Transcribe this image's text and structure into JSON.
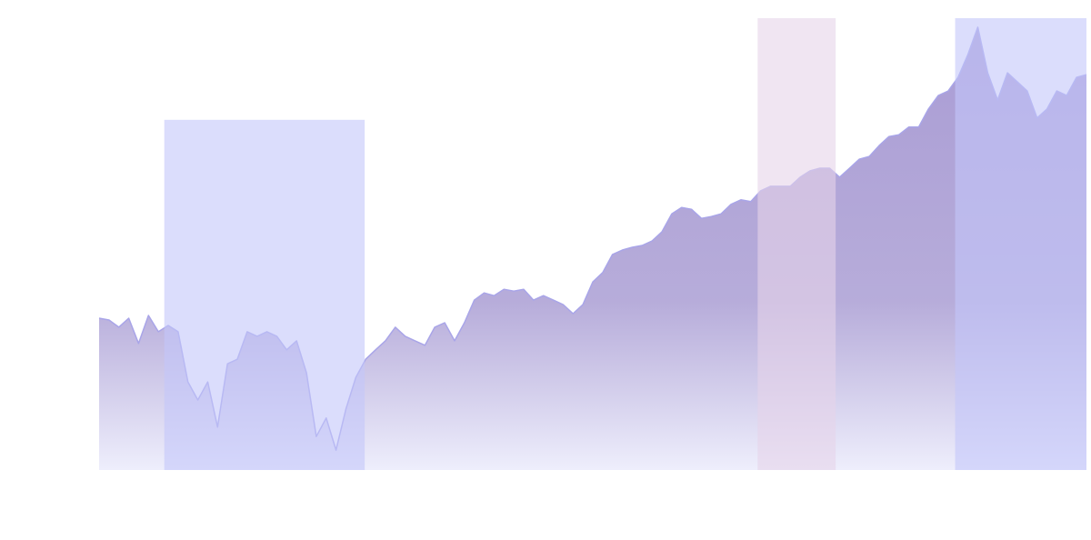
{
  "chart_data": {
    "type": "area",
    "x": [
      0,
      1,
      2,
      3,
      4,
      5,
      6,
      7,
      8,
      9,
      10,
      11,
      12,
      13,
      14,
      15,
      16,
      17,
      18,
      19,
      20,
      21,
      22,
      23,
      24,
      25,
      26,
      27,
      28,
      29,
      30,
      31,
      32,
      33,
      34,
      35,
      36,
      37,
      38,
      39,
      40,
      41,
      42,
      43,
      44,
      45,
      46,
      47,
      48,
      49,
      50,
      51,
      52,
      53,
      54,
      55,
      56,
      57,
      58,
      59,
      60,
      61,
      62,
      63,
      64,
      65,
      66,
      67,
      68,
      69,
      70,
      71,
      72,
      73,
      74,
      75,
      76,
      77,
      78,
      79,
      80,
      81,
      82,
      83,
      84,
      85,
      86,
      87,
      88,
      89,
      90,
      91,
      92,
      93,
      94,
      95,
      96,
      97,
      98,
      99,
      100
    ],
    "values": [
      33.6,
      33.2,
      31.6,
      33.6,
      28.0,
      34.2,
      30.6,
      32.0,
      30.6,
      19.5,
      15.5,
      19.5,
      9.5,
      23.5,
      24.5,
      30.6,
      29.6,
      30.6,
      29.6,
      26.6,
      28.6,
      21.5,
      7.4,
      11.5,
      4.4,
      13.5,
      20.5,
      24.5,
      26.6,
      28.6,
      31.6,
      29.6,
      28.6,
      27.6,
      31.6,
      32.6,
      28.6,
      32.6,
      37.6,
      39.2,
      38.6,
      40.0,
      39.6,
      40.0,
      37.6,
      38.6,
      37.6,
      36.6,
      34.6,
      36.6,
      41.6,
      43.7,
      47.7,
      48.7,
      49.3,
      49.7,
      50.7,
      52.7,
      56.7,
      58.1,
      57.7,
      55.7,
      56.1,
      56.7,
      58.8,
      59.8,
      59.4,
      61.8,
      62.8,
      62.8,
      62.8,
      64.8,
      66.2,
      66.8,
      66.8,
      64.8,
      66.8,
      68.8,
      69.4,
      71.8,
      73.8,
      74.2,
      75.9,
      75.9,
      79.9,
      82.9,
      83.9,
      86.9,
      92.0,
      98.0,
      87.9,
      81.9,
      87.9,
      85.9,
      83.9,
      77.9,
      79.9,
      83.9,
      82.9,
      86.9,
      87.5
    ],
    "color": "#a9a5e8",
    "xlim": [
      0,
      100
    ],
    "ylim": [
      0,
      100
    ],
    "bands": [
      {
        "x": [
          6.6,
          26.9
        ],
        "top": 77.5,
        "color": "#c3c7fa"
      },
      {
        "x": [
          66.7,
          74.6
        ],
        "top": 100,
        "color": "#e6d3ea"
      },
      {
        "x": [
          86.7,
          100
        ],
        "top": 100,
        "color": "#c3c7fa"
      }
    ]
  }
}
